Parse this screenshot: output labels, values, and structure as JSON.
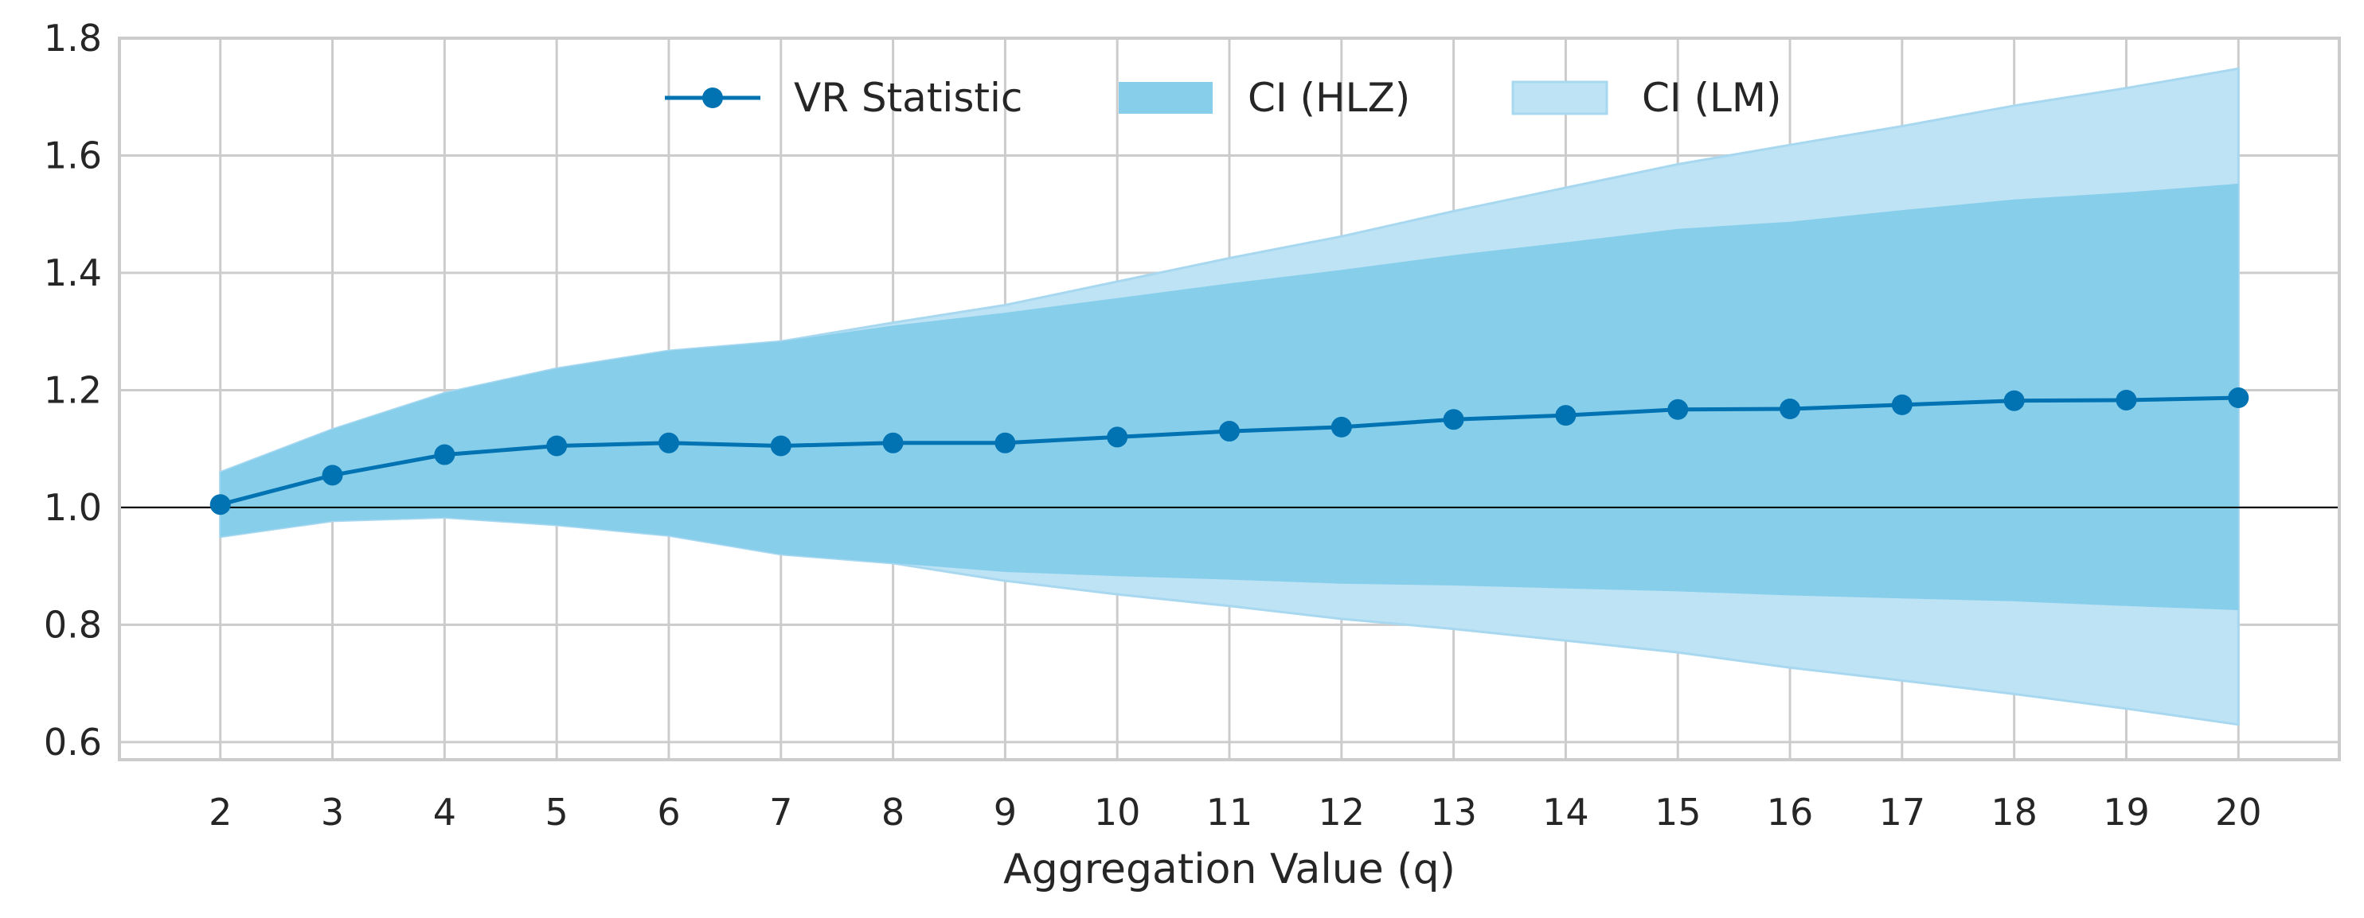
{
  "chart_data": {
    "type": "line",
    "title": "",
    "xlabel": "Aggregation Value (q)",
    "ylabel": "",
    "x": [
      2,
      3,
      4,
      5,
      6,
      7,
      8,
      9,
      10,
      11,
      12,
      13,
      14,
      15,
      16,
      17,
      18,
      19,
      20
    ],
    "xlim": [
      1.1,
      20.9
    ],
    "ylim": [
      0.57,
      1.8
    ],
    "yticks": [
      0.6,
      0.8,
      1.0,
      1.2,
      1.4,
      1.6,
      1.8
    ],
    "ytick_labels": [
      "0.6",
      "0.8",
      "1.0",
      "1.2",
      "1.4",
      "1.6",
      "1.8"
    ],
    "xtick_labels": [
      "2",
      "3",
      "4",
      "5",
      "6",
      "7",
      "8",
      "9",
      "10",
      "11",
      "12",
      "13",
      "14",
      "15",
      "16",
      "17",
      "18",
      "19",
      "20"
    ],
    "reference_line": 1.0,
    "grid": true,
    "legend_position": "top-center",
    "series": [
      {
        "name": "VR Statistic",
        "kind": "line-marker",
        "color": "#0173b2",
        "values": [
          1.005,
          1.055,
          1.09,
          1.105,
          1.11,
          1.105,
          1.11,
          1.11,
          1.12,
          1.13,
          1.137,
          1.15,
          1.157,
          1.167,
          1.168,
          1.175,
          1.182,
          1.183,
          1.187
        ]
      },
      {
        "name": "CI (HLZ)",
        "kind": "band",
        "color": "#87ceeb",
        "lower": [
          0.95,
          0.977,
          0.983,
          0.97,
          0.952,
          0.92,
          0.905,
          0.89,
          0.883,
          0.877,
          0.87,
          0.867,
          0.862,
          0.857,
          0.85,
          0.845,
          0.84,
          0.832,
          0.825
        ],
        "upper": [
          1.06,
          1.133,
          1.195,
          1.237,
          1.267,
          1.283,
          1.31,
          1.332,
          1.357,
          1.382,
          1.405,
          1.43,
          1.452,
          1.475,
          1.487,
          1.507,
          1.525,
          1.537,
          1.552
        ]
      },
      {
        "name": "CI (LM)",
        "kind": "band",
        "color": "#bde3f5",
        "lower": [
          0.95,
          0.977,
          0.983,
          0.97,
          0.952,
          0.92,
          0.905,
          0.875,
          0.852,
          0.832,
          0.81,
          0.793,
          0.773,
          0.753,
          0.727,
          0.705,
          0.682,
          0.657,
          0.63
        ],
        "upper": [
          1.06,
          1.133,
          1.195,
          1.237,
          1.267,
          1.283,
          1.315,
          1.345,
          1.385,
          1.425,
          1.462,
          1.505,
          1.545,
          1.585,
          1.618,
          1.65,
          1.685,
          1.715,
          1.748
        ]
      }
    ]
  }
}
